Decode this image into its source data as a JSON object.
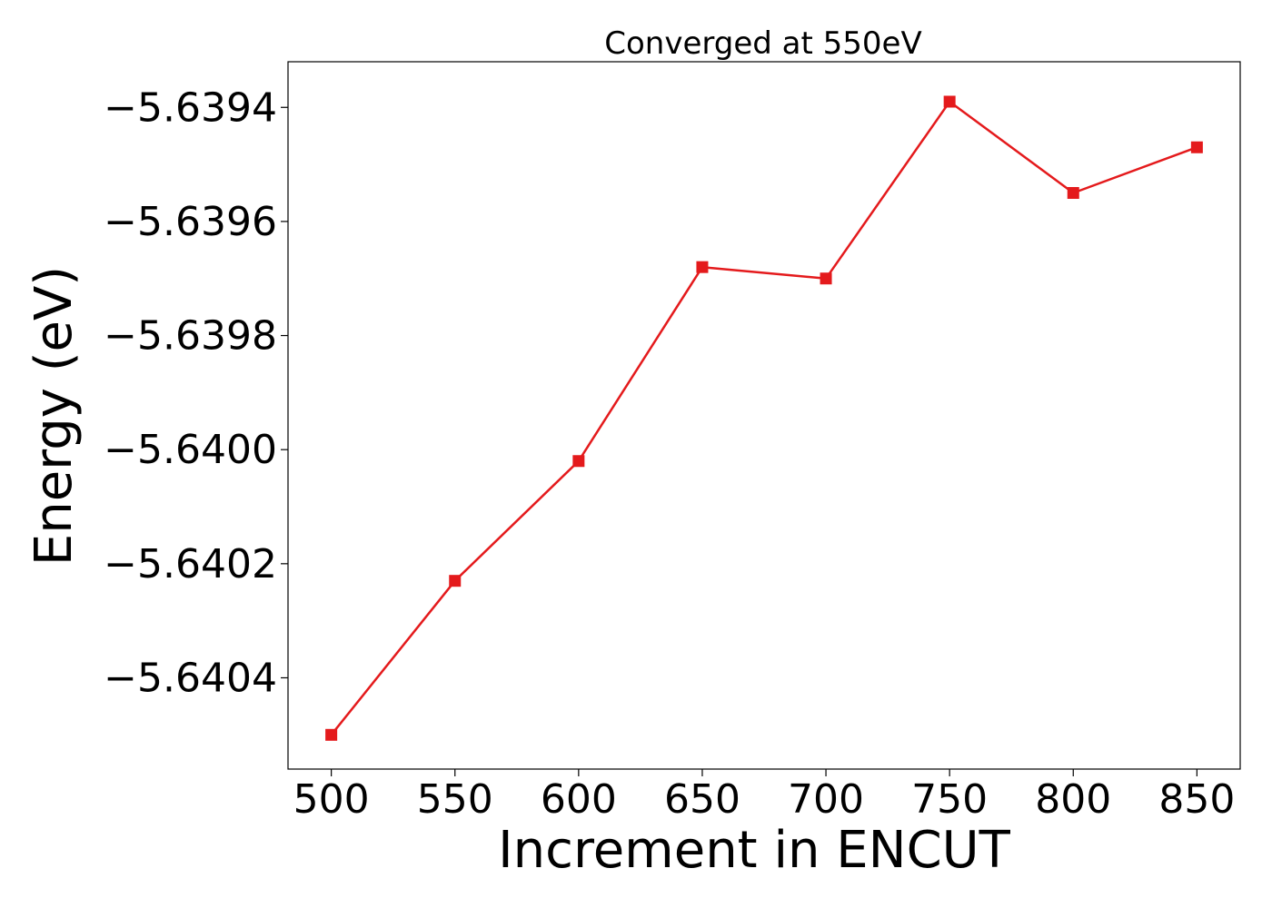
{
  "chart_data": {
    "type": "line",
    "title": "Converged at 550eV",
    "xlabel": "Increment in ENCUT",
    "ylabel": "Energy (eV)",
    "x": [
      500,
      550,
      600,
      650,
      700,
      750,
      800,
      850
    ],
    "series": [
      {
        "values": [
          -5.6405,
          -5.64023,
          -5.64002,
          -5.63968,
          -5.6397,
          -5.63939,
          -5.63955,
          -5.63947
        ],
        "color": "#e41a1c",
        "marker": "square"
      }
    ],
    "xlim": [
      482.5,
      867.5
    ],
    "ylim": [
      -5.64056,
      -5.63932
    ],
    "xticks": [
      500,
      550,
      600,
      650,
      700,
      750,
      800,
      850
    ],
    "xtick_labels": [
      "500",
      "550",
      "600",
      "650",
      "700",
      "750",
      "800",
      "850"
    ],
    "yticks": [
      -5.6394,
      -5.6396,
      -5.6398,
      -5.64,
      -5.6402,
      -5.6404
    ],
    "ytick_labels": [
      "−5.6394",
      "−5.6396",
      "−5.6398",
      "−5.6400",
      "−5.6402",
      "−5.6404"
    ],
    "grid": false,
    "legend": "none"
  }
}
